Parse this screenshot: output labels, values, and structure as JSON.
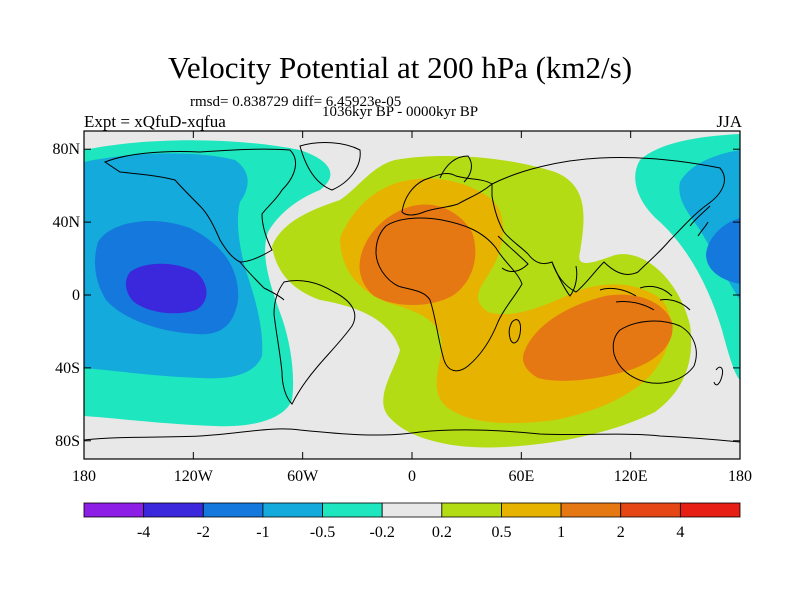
{
  "header": {
    "title": "Velocity Potential at 200 hPa (km2/s)",
    "stats": "rmsd= 0.838729 diff= 6.45923e-05",
    "period": "1036kyr BP - 0000kyr BP",
    "experiment": "Expt = xQfuD-xqfua",
    "season": "JJA"
  },
  "map": {
    "projection": "cylindrical equidistant",
    "lon_range": [
      -180,
      180
    ],
    "lat_range": [
      -90,
      90
    ],
    "lat_ticks": [
      {
        "value": 80,
        "label": "80N"
      },
      {
        "value": 40,
        "label": "40N"
      },
      {
        "value": 0,
        "label": "0"
      },
      {
        "value": -40,
        "label": "40S"
      },
      {
        "value": -80,
        "label": "80S"
      }
    ],
    "lon_ticks": [
      {
        "value": -180,
        "label": "180"
      },
      {
        "value": -120,
        "label": "120W"
      },
      {
        "value": -60,
        "label": "60W"
      },
      {
        "value": 0,
        "label": "0"
      },
      {
        "value": 60,
        "label": "60E"
      },
      {
        "value": 120,
        "label": "120E"
      },
      {
        "value": 180,
        "label": "180"
      }
    ],
    "background_color": "#e8e8e8",
    "coastline_color": "#000000"
  },
  "colorbar": {
    "labels": [
      "-4",
      "-2",
      "-1",
      "-0.5",
      "-0.2",
      "0.2",
      "0.5",
      "1",
      "2",
      "4"
    ],
    "colors": [
      "#8c1ee6",
      "#3c28dc",
      "#1478dc",
      "#14aadc",
      "#1ee6be",
      "#e8e8e8",
      "#b4dc14",
      "#e6b400",
      "#e67814",
      "#e64614",
      "#e61e14"
    ]
  }
}
